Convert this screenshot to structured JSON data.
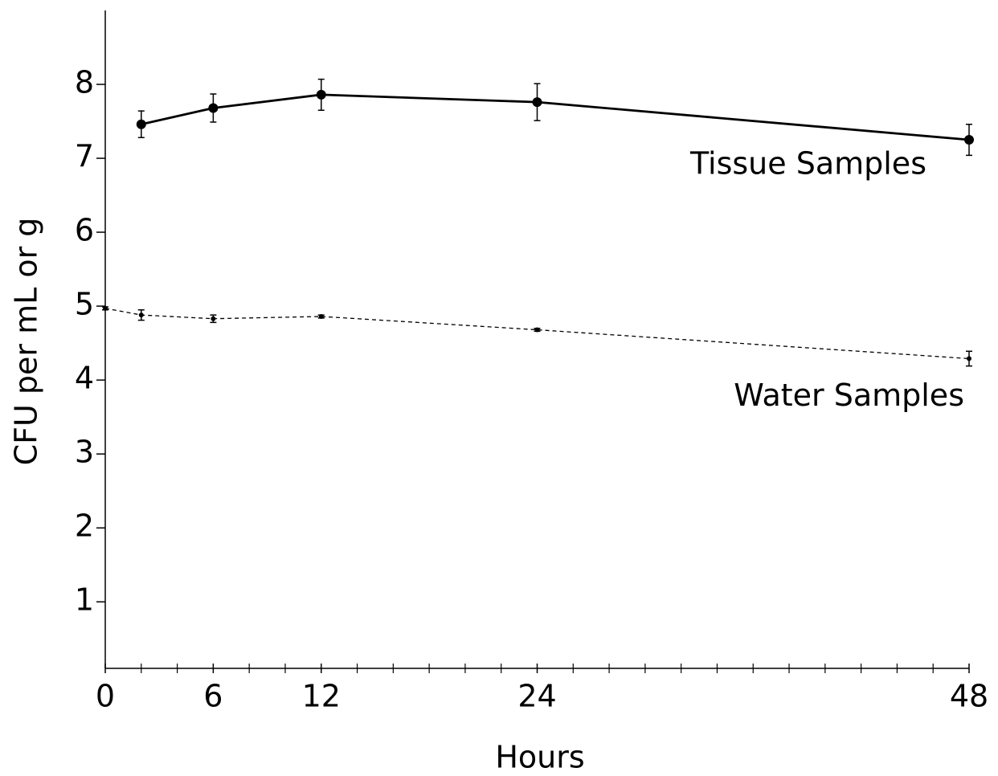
{
  "chart_data": {
    "type": "line",
    "x_label": "Hours",
    "y_label": "CFU per mL  or g",
    "xlim": [
      0,
      48
    ],
    "ylim": [
      0.1,
      9
    ],
    "xticks": [
      0,
      6,
      12,
      24,
      48
    ],
    "xminorticks": [
      2,
      4,
      8,
      10,
      14,
      16,
      18,
      20,
      22,
      26,
      28,
      30,
      32,
      34,
      36,
      38,
      40,
      42,
      44,
      46
    ],
    "yticks": [
      1,
      2,
      3,
      4,
      5,
      6,
      7,
      8
    ],
    "series": [
      {
        "name": "Tissue Samples",
        "color": "#000000",
        "dashed": false,
        "marker_size": 6,
        "x": [
          2,
          6,
          12,
          24,
          48
        ],
        "values": [
          7.46,
          7.68,
          7.86,
          7.76,
          7.25
        ],
        "errors": [
          0.18,
          0.19,
          0.21,
          0.25,
          0.21
        ]
      },
      {
        "name": "Water Samples",
        "color": "#000000",
        "dashed": true,
        "marker_size": 3,
        "x": [
          0,
          2,
          6,
          12,
          24,
          48
        ],
        "values": [
          4.97,
          4.88,
          4.83,
          4.86,
          4.68,
          4.29
        ],
        "errors": [
          0.02,
          0.07,
          0.05,
          0.02,
          0.02,
          0.1
        ]
      }
    ]
  }
}
